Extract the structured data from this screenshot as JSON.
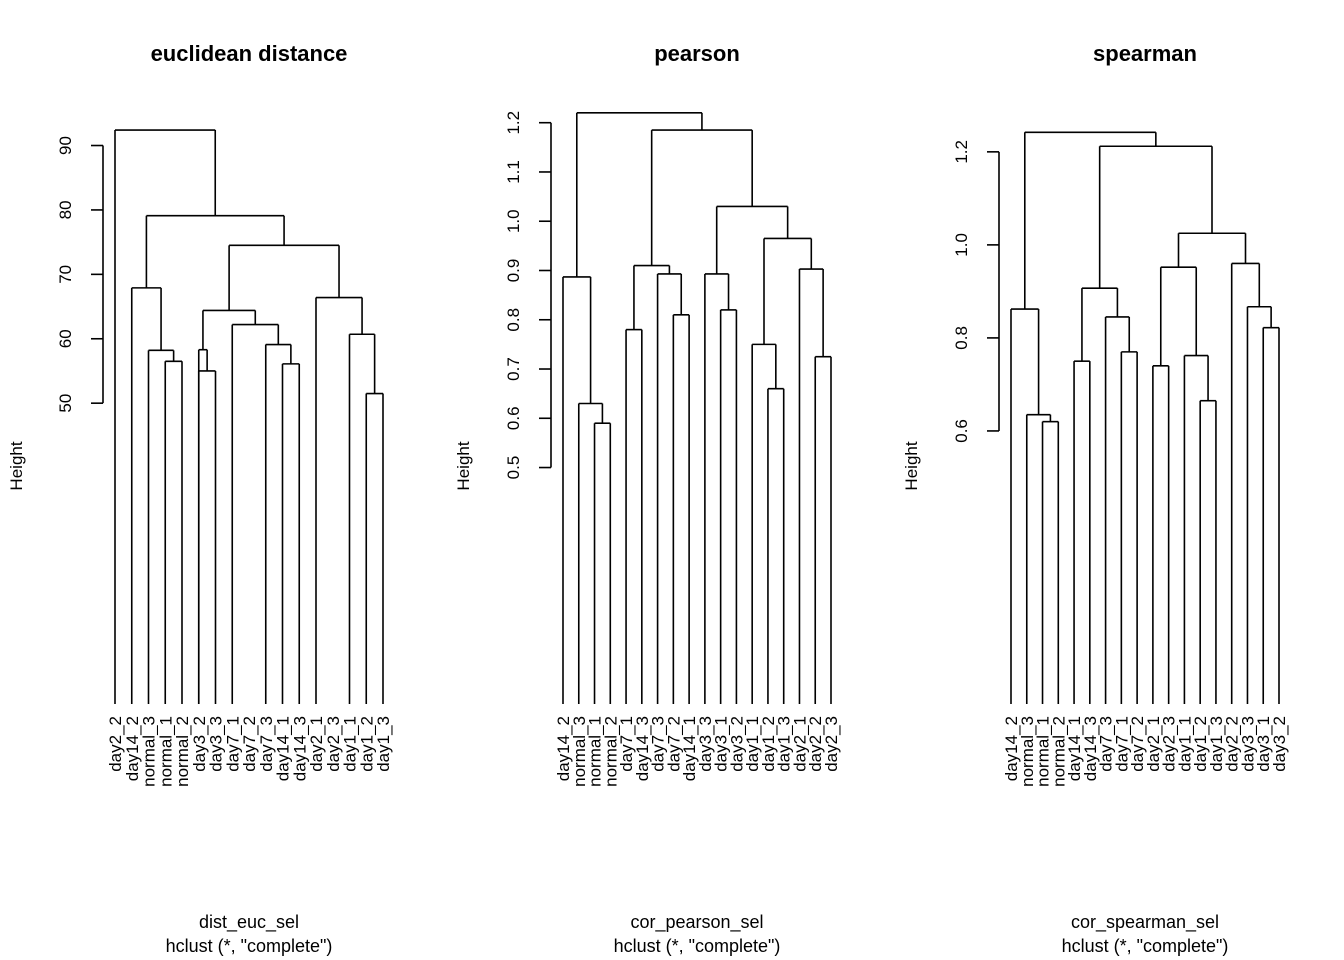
{
  "chart_data": [
    {
      "type": "dendrogram",
      "title": "euclidean distance",
      "ylabel": "Height",
      "sub_lines": [
        "dist_euc_sel",
        "hclust (*, \"complete\")"
      ],
      "yticks": [
        50,
        60,
        70,
        80,
        90
      ],
      "ylim": [
        3.3,
        96.6
      ],
      "labels": [
        "day2_2",
        "day14_2",
        "normal_3",
        "normal_1",
        "normal_2",
        "day3_2",
        "day3_3",
        "day7_1",
        "day7_2",
        "day7_3",
        "day14_1",
        "day14_3",
        "day2_1",
        "day2_3",
        "day1_1",
        "day1_2",
        "day1_3"
      ],
      "merges": [
        {
          "a": 15,
          "b": 16,
          "h": 51.5
        },
        {
          "a": 5,
          "b": 6,
          "h": 55.0
        },
        {
          "a": 10,
          "b": 11,
          "h": 56.1
        },
        {
          "a": 3,
          "b": 4,
          "h": 56.5
        },
        {
          "a": "m3",
          "b": 2,
          "h": 58.2
        },
        {
          "a": 5,
          "b": "m1",
          "h": 58.3
        },
        {
          "a": 9,
          "b": "m2",
          "h": 59.1
        },
        {
          "a": 14,
          "b": "m0",
          "h": 60.7
        },
        {
          "a": 7,
          "b": "m6",
          "h": 62.2
        },
        {
          "a": "m5",
          "b": "m8",
          "h": 64.4
        },
        {
          "a": 12,
          "b": "m7",
          "h": 66.4
        },
        {
          "a": 1,
          "b": "m4",
          "h": 67.9
        },
        {
          "a": "m9",
          "b": "m10",
          "h": 74.5
        },
        {
          "a": "m11",
          "b": "m12",
          "h": 79.1
        },
        {
          "a": 0,
          "b": "m13",
          "h": 92.4
        }
      ]
    },
    {
      "type": "dendrogram",
      "title": "pearson",
      "ylabel": "Height",
      "sub_lines": [
        "cor_pearson_sel",
        "hclust (*, \"complete\")"
      ],
      "yticks": [
        0.5,
        0.6,
        0.7,
        0.8,
        0.9,
        1.0,
        1.1,
        1.2
      ],
      "ylim": [
        0.02,
        1.24
      ],
      "labels": [
        "day14_2",
        "normal_3",
        "normal_1",
        "normal_2",
        "day7_1",
        "day14_3",
        "day7_3",
        "day7_2",
        "day14_1",
        "day3_3",
        "day3_1",
        "day3_2",
        "day1_1",
        "day1_2",
        "day1_3",
        "day2_1",
        "day2_2",
        "day2_3"
      ],
      "merges": [
        {
          "a": 2,
          "b": 3,
          "h": 0.59
        },
        {
          "a": 1,
          "b": "m0",
          "h": 0.63
        },
        {
          "a": 13,
          "b": 14,
          "h": 0.66
        },
        {
          "a": 16,
          "b": 17,
          "h": 0.725
        },
        {
          "a": 12,
          "b": "m2",
          "h": 0.75
        },
        {
          "a": 4,
          "b": 5,
          "h": 0.78
        },
        {
          "a": 7,
          "b": 8,
          "h": 0.81
        },
        {
          "a": 10,
          "b": 11,
          "h": 0.82
        },
        {
          "a": 0,
          "b": "m1",
          "h": 0.887
        },
        {
          "a": 6,
          "b": "m6",
          "h": 0.893
        },
        {
          "a": 9,
          "b": "m7",
          "h": 0.893
        },
        {
          "a": 15,
          "b": "m3",
          "h": 0.903
        },
        {
          "a": "m5",
          "b": "m9",
          "h": 0.91
        },
        {
          "a": "m4",
          "b": "m11",
          "h": 0.965
        },
        {
          "a": "m10",
          "b": "m13",
          "h": 1.03
        },
        {
          "a": "m12",
          "b": "m14",
          "h": 1.185
        },
        {
          "a": "m8",
          "b": "m15",
          "h": 1.22
        }
      ]
    },
    {
      "type": "dendrogram",
      "title": "spearman",
      "ylabel": "Height",
      "sub_lines": [
        "cor_spearman_sel",
        "hclust (*, \"complete\")"
      ],
      "yticks": [
        0.6,
        0.8,
        1.0,
        1.2
      ],
      "ylim": [
        0.013,
        1.305
      ],
      "labels": [
        "day14_2",
        "normal_3",
        "normal_1",
        "normal_2",
        "day14_1",
        "day14_3",
        "day7_3",
        "day7_1",
        "day7_2",
        "day2_1",
        "day2_3",
        "day1_1",
        "day1_2",
        "day1_3",
        "day2_2",
        "day3_3",
        "day3_1",
        "day3_2"
      ],
      "merges": [
        {
          "a": 2,
          "b": 3,
          "h": 0.62
        },
        {
          "a": 1,
          "b": "m0",
          "h": 0.635
        },
        {
          "a": 12,
          "b": 13,
          "h": 0.665
        },
        {
          "a": 9,
          "b": 10,
          "h": 0.74
        },
        {
          "a": 4,
          "b": 5,
          "h": 0.75
        },
        {
          "a": 11,
          "b": "m2",
          "h": 0.762
        },
        {
          "a": 7,
          "b": 8,
          "h": 0.77
        },
        {
          "a": 16,
          "b": 17,
          "h": 0.822
        },
        {
          "a": 6,
          "b": "m6",
          "h": 0.845
        },
        {
          "a": 0,
          "b": "m1",
          "h": 0.862
        },
        {
          "a": 15,
          "b": "m7",
          "h": 0.867
        },
        {
          "a": "m4",
          "b": "m8",
          "h": 0.907
        },
        {
          "a": "m3",
          "b": "m5",
          "h": 0.952
        },
        {
          "a": 14,
          "b": "m10",
          "h": 0.96
        },
        {
          "a": "m12",
          "b": "m13",
          "h": 1.025
        },
        {
          "a": "m11",
          "b": "m14",
          "h": 1.212
        },
        {
          "a": "m9",
          "b": "m15",
          "h": 1.242
        }
      ]
    }
  ]
}
